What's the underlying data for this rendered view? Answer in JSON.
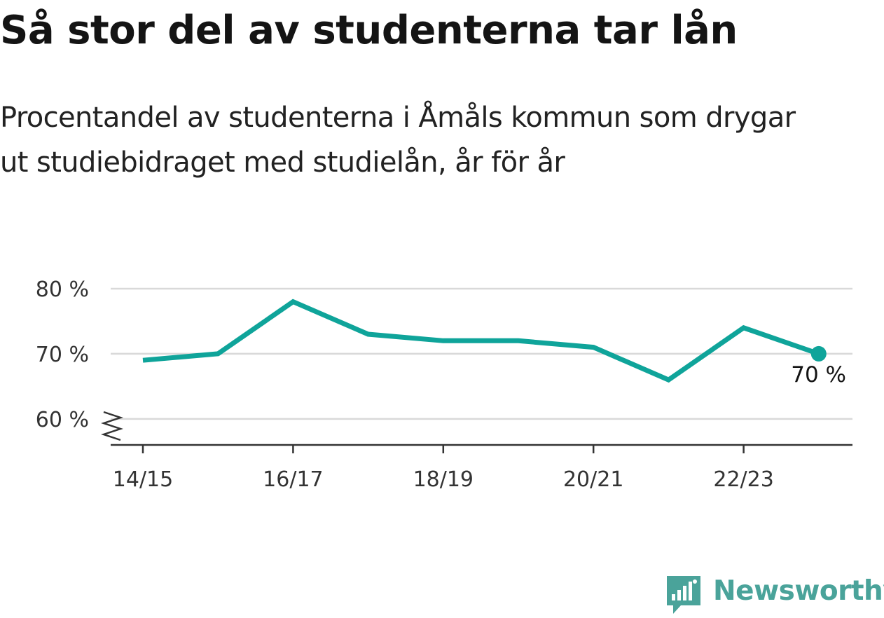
{
  "title": "Så stor del av studenterna tar lån",
  "subtitle_lines": [
    "Procentandel av studenterna i Åmåls kommun som drygar",
    "ut studiebidraget med studielån, år för år"
  ],
  "chart_data": {
    "type": "line",
    "title": "Så stor del av studenterna tar lån",
    "subtitle": "Procentandel av studenterna i Åmåls kommun som drygar ut studiebidraget med studielån, år för år",
    "x": [
      "14/15",
      "15/16",
      "16/17",
      "17/18",
      "18/19",
      "19/20",
      "20/21",
      "21/22",
      "22/23",
      "23/24"
    ],
    "x_tick_labels": [
      "14/15",
      "16/17",
      "18/19",
      "20/21",
      "22/23"
    ],
    "series": [
      {
        "values": [
          69,
          70,
          78,
          73,
          72,
          72,
          71,
          66,
          74,
          70
        ]
      }
    ],
    "y_ticks": [
      60,
      70,
      80
    ],
    "y_tick_labels": [
      "60 %",
      "70 %",
      "80 %"
    ],
    "ylim": [
      56,
      80
    ],
    "axis_break": true,
    "grid": true,
    "end_label": "70 %",
    "colors": {
      "line": "#0fa49a",
      "grid": "#d9d9d9",
      "axis": "#333333"
    }
  },
  "brand": {
    "name": "Newsworthy",
    "icon": "newsworthy-logo-icon",
    "color": "#4aa39a"
  }
}
